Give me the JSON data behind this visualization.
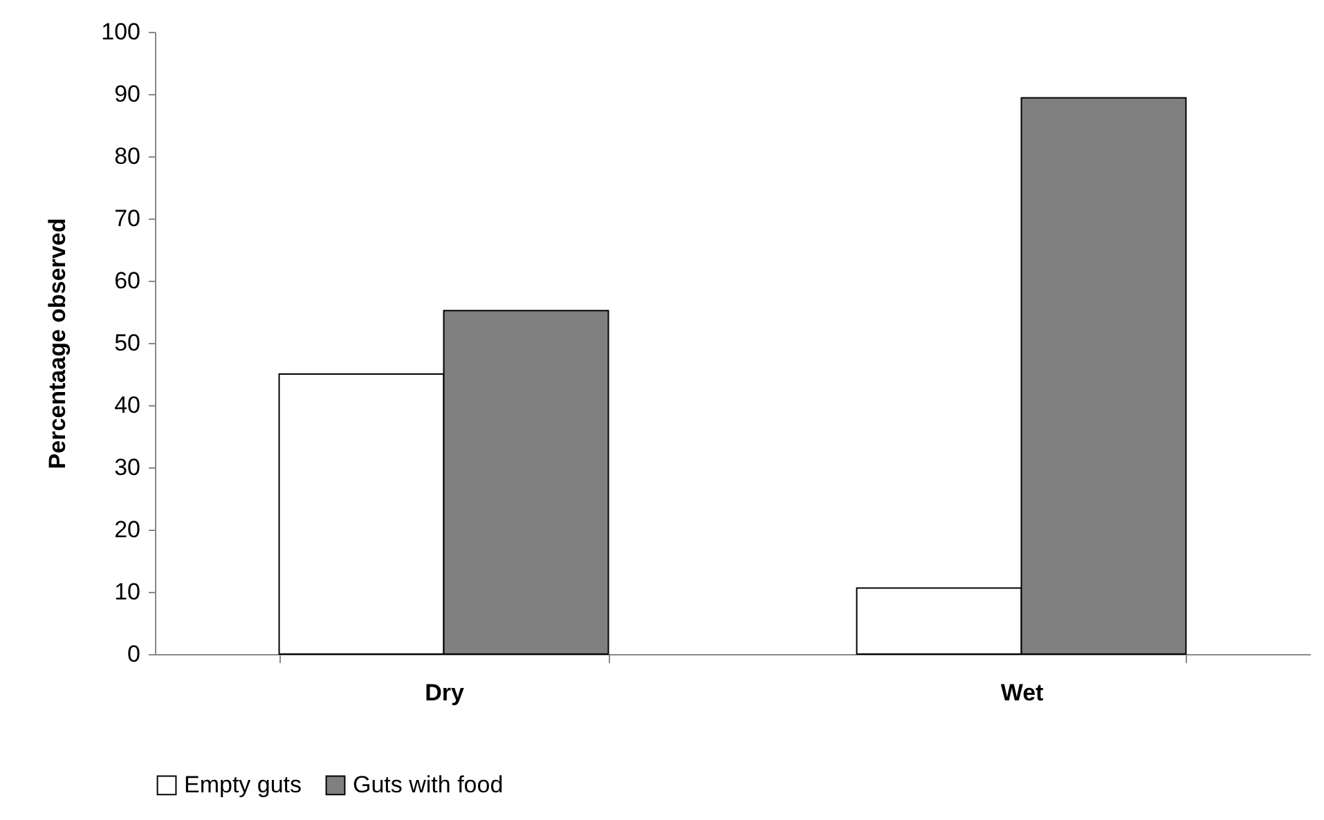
{
  "chart_data": {
    "type": "bar",
    "ylabel": "Percentaage observed",
    "categories": [
      "Dry",
      "Wet"
    ],
    "series": [
      {
        "name": "Empty guts",
        "color": "#ffffff",
        "values": [
          45,
          10.6
        ]
      },
      {
        "name": "Guts with food",
        "color": "#808080",
        "values": [
          55.2,
          89.4
        ]
      }
    ],
    "ylim": [
      0,
      100
    ],
    "yticks": [
      0,
      10,
      20,
      30,
      40,
      50,
      60,
      70,
      80,
      90,
      100
    ],
    "legend": "bottom"
  }
}
